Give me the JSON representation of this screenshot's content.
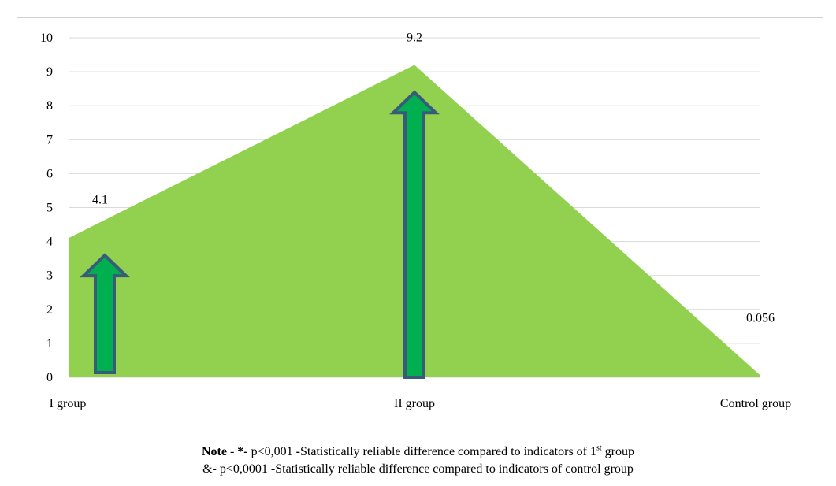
{
  "chart_data": {
    "type": "area",
    "categories": [
      "I group",
      "II group",
      "Control group"
    ],
    "series": [
      {
        "values": [
          4.1,
          9.2,
          0.056
        ],
        "color": "#92d050"
      }
    ],
    "data_labels": [
      "4.1",
      "9.2",
      "0.056"
    ],
    "arrows": [
      {
        "category": "I group",
        "value": 3.5
      },
      {
        "category": "II group",
        "value": 8.3
      }
    ],
    "arrow_fill": "#00b050",
    "arrow_stroke": "#3a5a7a",
    "ylim": [
      0,
      10
    ],
    "yticks": [
      "0",
      "1",
      "2",
      "3",
      "4",
      "5",
      "6",
      "7",
      "8",
      "9",
      "10"
    ],
    "grid": true,
    "title": "",
    "xlabel": "",
    "ylabel": ""
  },
  "note": {
    "line1_bold": "Note",
    "line1_text_a": " - ",
    "line1_bold2": "*-",
    "line1_text_b": " p<0,001 ",
    "line1_bold3": "-",
    "line1_text_c": "Statistically reliable difference compared to indicators of 1",
    "line1_sup": "st",
    "line1_text_d": " group",
    "line2": "&- p<0,0001 -Statistically reliable difference compared to indicators of control group"
  }
}
